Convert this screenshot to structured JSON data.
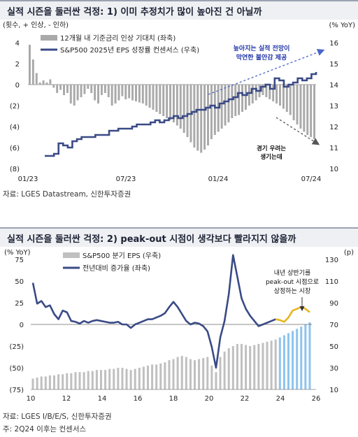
{
  "chart_data": [
    {
      "type": "bar+line",
      "title": "실적 시즌을 둘러싼 걱정: 1) 이미 추정치가 많이 높아진 건 아닐까",
      "left_axis_label": "(횟수, + 인상, - 인하)",
      "right_axis_label": "(% YoY)",
      "left_ylim": [
        -8,
        4
      ],
      "left_ticks": [
        "4",
        "2",
        "0",
        "(2)",
        "(4)",
        "(6)",
        "(8)"
      ],
      "right_ylim": [
        10,
        16
      ],
      "right_ticks": [
        "16",
        "15",
        "14",
        "13",
        "12",
        "11",
        "10"
      ],
      "x_ticks": [
        "01/23",
        "07/23",
        "01/24",
        "07/24"
      ],
      "legend_position": "top-left",
      "series": [
        {
          "name": "12개월 내 기준금리 인상 기대치 (좌축)",
          "kind": "bar",
          "axis": "left",
          "color": "#a9a9a9",
          "values": [
            3.8,
            2.4,
            1.1,
            0.2,
            0.4,
            0.2,
            0.5,
            -0.3,
            -0.8,
            -0.5,
            -1.0,
            -0.8,
            -1.8,
            -2.0,
            -1.5,
            -1.2,
            -0.9,
            -0.4,
            -0.8,
            -1.5,
            -1.8,
            -1.0,
            -0.8,
            -1.2,
            -2.0,
            -1.8,
            -1.5,
            -1.1,
            -1.4,
            -1.3,
            -1.5,
            -1.6,
            -1.7,
            -1.8,
            -2.0,
            -2.2,
            -2.4,
            -2.6,
            -2.8,
            -3.0,
            -3.2,
            -3.4,
            -3.6,
            -3.9,
            -4.2,
            -4.6,
            -5.0,
            -5.5,
            -6.0,
            -6.3,
            -6.5,
            -6.2,
            -5.8,
            -5.2,
            -4.8,
            -4.5,
            -4.2,
            -3.9,
            -3.6,
            -3.2,
            -3.0,
            -2.9,
            -2.6,
            -2.4,
            -2.0,
            -1.8,
            -1.5,
            -1.2,
            -1.0,
            -1.2,
            -1.4,
            -1.6,
            -1.8,
            -2.0,
            -2.3,
            -2.6,
            -2.9,
            -3.4,
            -3.8,
            -4.2,
            -4.5,
            -4.8,
            -5.0,
            -5.2
          ]
        },
        {
          "name": "S&P500 2025년 EPS 성장률 컨센서스 (우축)",
          "kind": "line",
          "axis": "right",
          "color": "#3a4a86",
          "values": [
            10.6,
            10.6,
            10.7,
            11.2,
            11.1,
            11.0,
            11.3,
            11.4,
            11.5,
            11.5,
            11.5,
            11.6,
            11.6,
            11.6,
            11.8,
            11.8,
            11.9,
            11.9,
            11.9,
            12.0,
            12.1,
            12.1,
            12.1,
            12.2,
            12.3,
            12.2,
            12.3,
            12.4,
            12.5,
            12.4,
            12.5,
            12.6,
            12.7,
            12.8,
            12.8,
            12.9,
            13.0,
            12.9,
            13.1,
            13.2,
            13.3,
            13.4,
            13.6,
            13.5,
            13.6,
            13.8,
            13.7,
            13.9,
            14.0,
            13.8,
            14.3,
            14.2,
            13.9,
            14.0,
            14.1,
            14.3,
            14.2,
            14.3,
            14.5,
            14.6
          ]
        }
      ],
      "annotations": [
        {
          "text_lines": [
            "높아지는 실적 전망이",
            "막연한 불안감 제공"
          ],
          "color": "#1f35a8"
        },
        {
          "text_lines": [
            "경기 우려는",
            "생기는데"
          ],
          "color": "#111111"
        }
      ]
    },
    {
      "type": "bar+line",
      "title": "실적 시즌을 둘러싼 걱정: 2) peak-out 시점이 생각보다 빨라지지 않을까",
      "left_axis_label": "(% YoY)",
      "right_axis_label": "(p)",
      "left_ylim": [
        -75,
        75
      ],
      "left_ticks": [
        "75",
        "50",
        "25",
        "0",
        "(25)",
        "(50)",
        "(75)"
      ],
      "right_ylim": [
        10,
        130
      ],
      "right_ticks": [
        "130",
        "110",
        "90",
        "70",
        "50",
        "30",
        "10"
      ],
      "x_ticks": [
        "10",
        "12",
        "14",
        "16",
        "18",
        "20",
        "22",
        "24",
        "26"
      ],
      "legend_position": "top-left",
      "series": [
        {
          "name": "S&P500 분기 EPS (우축)",
          "kind": "bar",
          "axis": "right",
          "color": "#c0c0c0",
          "forecast_color": "#8fc4ee",
          "forecast_start_index": 58,
          "values": [
            20,
            21,
            22,
            22,
            23,
            23,
            24,
            24,
            25,
            25,
            26,
            26,
            26,
            27,
            27,
            28,
            28,
            28,
            29,
            29,
            30,
            30,
            29,
            28,
            29,
            30,
            31,
            32,
            33,
            33,
            34,
            35,
            37,
            38,
            40,
            41,
            40,
            38,
            37,
            38,
            39,
            40,
            32,
            26,
            40,
            45,
            48,
            50,
            52,
            52,
            51,
            50,
            51,
            52,
            53,
            54,
            55,
            56,
            58,
            60,
            62,
            64,
            66,
            68,
            70,
            72
          ]
        },
        {
          "name": "전년대비 증가율 (좌축)",
          "kind": "line",
          "axis": "left",
          "color": "#3a4a86",
          "values": [
            48,
            24,
            27,
            20,
            22,
            12,
            6,
            16,
            14,
            4,
            3,
            1,
            4,
            2,
            4,
            5,
            4,
            3,
            2,
            2,
            3,
            0,
            0,
            -4,
            0,
            2,
            4,
            6,
            6,
            8,
            10,
            13,
            20,
            26,
            20,
            12,
            4,
            0,
            2,
            1,
            -2,
            -8,
            -26,
            -50,
            -15,
            4,
            35,
            80,
            55,
            30,
            18,
            10,
            4,
            -2,
            0,
            2,
            4,
            6,
            5,
            3,
            8,
            16,
            18,
            20,
            18,
            14
          ]
        }
      ],
      "annotations": [
        {
          "text_lines": [
            "내년 상반기를",
            "peak-out 시점으로",
            "상정하는 시장"
          ],
          "color": "#111111"
        }
      ]
    }
  ],
  "sources": {
    "chart1": "자료: LGES Datastream, 신한투자증권",
    "chart2": "자료: LGES I/B/E/S, 신한투자증권",
    "note2": "주: 2Q24 이후는 컨센서스"
  }
}
